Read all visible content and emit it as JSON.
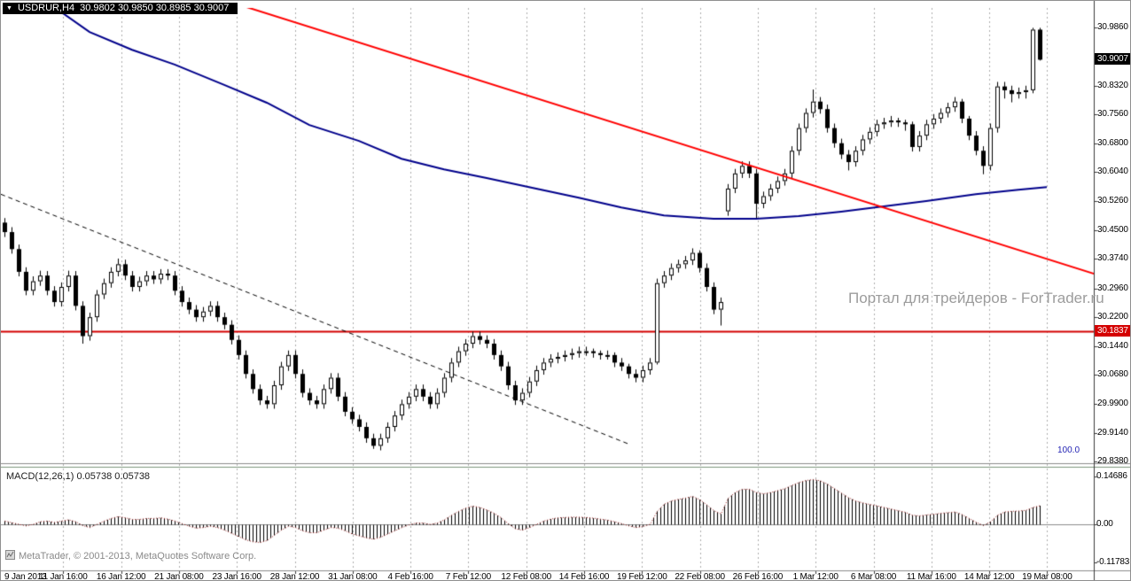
{
  "window": {
    "marker": "▼",
    "symbol_period": "USDRUR,H4",
    "ohlc_readout": "30.9802 30.9850 30.8985 30.9007"
  },
  "watermark": "Портал для трейдеров - ForTrader.ru",
  "copyright": "MetaTrader, © 2001-2013, MetaQuotes Software Corp.",
  "fib_label": "100.0",
  "macd_label": "MACD(12,26,1) 0.05738 0.05738",
  "price_tags": {
    "current": {
      "text": "30.9007",
      "bg": "#000000",
      "fg": "#ffffff"
    },
    "level": {
      "text": "30.1837",
      "bg": "#d40000",
      "fg": "#ffffff"
    }
  },
  "chart_data": [
    {
      "type": "candlestick",
      "title": "USDRUR H4",
      "ylim": [
        29.834,
        31.0375
      ],
      "grid": "vertical-dashed",
      "bull_fill": "#ffffff",
      "bear_fill": "#000000",
      "outline": "#000000",
      "y_tick_labels": [
        "30.9860",
        "30.8320",
        "30.7560",
        "30.6800",
        "30.6040",
        "30.5260",
        "30.4500",
        "30.3740",
        "30.2960",
        "30.2200",
        "30.1440",
        "30.0680",
        "29.9900",
        "29.9140",
        "29.8380"
      ],
      "x_tick_labels": [
        "9 Jan 2013",
        "11 Jan 16:00",
        "16 Jan 12:00",
        "21 Jan 08:00",
        "23 Jan 16:00",
        "28 Jan 12:00",
        "31 Jan 08:00",
        "4 Feb 16:00",
        "7 Feb 12:00",
        "12 Feb 08:00",
        "14 Feb 16:00",
        "19 Feb 12:00",
        "22 Feb 08:00",
        "26 Feb 16:00",
        "1 Mar 12:00",
        "6 Mar 08:00",
        "11 Mar 16:00",
        "14 Mar 12:00",
        "19 Mar 08:00"
      ],
      "candles": [
        [
          30.47,
          30.482,
          30.432,
          30.445
        ],
        [
          30.445,
          30.458,
          30.388,
          30.4
        ],
        [
          30.4,
          30.412,
          30.328,
          30.34
        ],
        [
          30.34,
          30.352,
          30.278,
          30.29
        ],
        [
          30.29,
          30.328,
          30.278,
          30.315
        ],
        [
          30.315,
          30.343,
          30.303,
          30.33
        ],
        [
          30.33,
          30.342,
          30.278,
          30.29
        ],
        [
          30.29,
          30.302,
          30.248,
          30.26
        ],
        [
          30.26,
          30.312,
          30.248,
          30.3
        ],
        [
          30.3,
          30.343,
          30.288,
          30.33
        ],
        [
          30.33,
          30.342,
          30.238,
          30.25
        ],
        [
          30.25,
          30.262,
          30.15,
          30.17
        ],
        [
          30.17,
          30.232,
          30.158,
          30.22
        ],
        [
          30.22,
          30.292,
          30.208,
          30.28
        ],
        [
          30.28,
          30.322,
          30.268,
          30.31
        ],
        [
          30.31,
          30.352,
          30.298,
          30.34
        ],
        [
          30.34,
          30.375,
          30.328,
          30.36
        ],
        [
          30.36,
          30.372,
          30.318,
          30.33
        ],
        [
          30.33,
          30.342,
          30.288,
          30.3
        ],
        [
          30.3,
          30.327,
          30.288,
          30.315
        ],
        [
          30.315,
          30.342,
          30.303,
          30.33
        ],
        [
          30.33,
          30.342,
          30.308,
          30.32
        ],
        [
          30.32,
          30.347,
          30.308,
          30.335
        ],
        [
          30.335,
          30.347,
          30.318,
          30.33
        ],
        [
          30.33,
          30.342,
          30.278,
          30.29
        ],
        [
          30.29,
          30.302,
          30.248,
          30.26
        ],
        [
          30.26,
          30.272,
          30.228,
          30.24
        ],
        [
          30.24,
          30.252,
          30.208,
          30.22
        ],
        [
          30.22,
          30.247,
          30.208,
          30.235
        ],
        [
          30.235,
          30.262,
          30.223,
          30.25
        ],
        [
          30.25,
          30.262,
          30.208,
          30.22
        ],
        [
          30.22,
          30.232,
          30.188,
          30.2
        ],
        [
          30.2,
          30.212,
          30.148,
          30.16
        ],
        [
          30.16,
          30.172,
          30.108,
          30.12
        ],
        [
          30.12,
          30.132,
          30.058,
          30.07
        ],
        [
          30.07,
          30.082,
          30.018,
          30.03
        ],
        [
          30.03,
          30.042,
          29.988,
          30.0
        ],
        [
          30.0,
          30.012,
          29.978,
          29.99
        ],
        [
          29.99,
          30.052,
          29.978,
          30.04
        ],
        [
          30.04,
          30.102,
          30.028,
          30.09
        ],
        [
          30.09,
          30.132,
          30.078,
          30.12
        ],
        [
          30.12,
          30.132,
          30.058,
          30.07
        ],
        [
          30.07,
          30.082,
          30.008,
          30.02
        ],
        [
          30.02,
          30.032,
          29.988,
          30.0
        ],
        [
          30.0,
          30.012,
          29.978,
          29.99
        ],
        [
          29.99,
          30.042,
          29.978,
          30.03
        ],
        [
          30.03,
          30.072,
          30.018,
          30.06
        ],
        [
          30.06,
          30.072,
          29.998,
          30.01
        ],
        [
          30.01,
          30.022,
          29.958,
          29.97
        ],
        [
          29.97,
          29.982,
          29.938,
          29.95
        ],
        [
          29.95,
          29.962,
          29.918,
          29.93
        ],
        [
          29.93,
          29.942,
          29.888,
          29.9
        ],
        [
          29.9,
          29.912,
          29.872,
          29.88
        ],
        [
          29.88,
          29.912,
          29.868,
          29.9
        ],
        [
          29.9,
          29.942,
          29.888,
          29.93
        ],
        [
          29.93,
          29.972,
          29.918,
          29.96
        ],
        [
          29.96,
          30.002,
          29.948,
          29.99
        ],
        [
          29.99,
          30.022,
          29.978,
          30.01
        ],
        [
          30.01,
          30.042,
          29.998,
          30.03
        ],
        [
          30.03,
          30.042,
          29.998,
          30.01
        ],
        [
          30.01,
          30.022,
          29.978,
          29.99
        ],
        [
          29.99,
          30.032,
          29.978,
          30.02
        ],
        [
          30.02,
          30.072,
          30.008,
          30.06
        ],
        [
          30.06,
          30.112,
          30.048,
          30.1
        ],
        [
          30.1,
          30.142,
          30.088,
          30.13
        ],
        [
          30.13,
          30.162,
          30.118,
          30.15
        ],
        [
          30.15,
          30.182,
          30.138,
          30.17
        ],
        [
          30.17,
          30.182,
          30.148,
          30.16
        ],
        [
          30.16,
          30.172,
          30.138,
          30.15
        ],
        [
          30.15,
          30.162,
          30.108,
          30.12
        ],
        [
          30.12,
          30.132,
          30.078,
          30.09
        ],
        [
          30.09,
          30.102,
          30.028,
          30.04
        ],
        [
          30.04,
          30.052,
          29.988,
          30.0
        ],
        [
          30.0,
          30.032,
          29.988,
          30.02
        ],
        [
          30.02,
          30.062,
          30.008,
          30.05
        ],
        [
          30.05,
          30.092,
          30.038,
          30.08
        ],
        [
          30.08,
          30.112,
          30.068,
          30.1
        ],
        [
          30.1,
          30.122,
          30.088,
          30.11
        ],
        [
          30.11,
          30.127,
          30.098,
          30.115
        ],
        [
          30.115,
          30.132,
          30.103,
          30.12
        ],
        [
          30.12,
          30.137,
          30.108,
          30.125
        ],
        [
          30.125,
          30.142,
          30.113,
          30.13
        ],
        [
          30.13,
          30.142,
          30.118,
          30.13
        ],
        [
          30.13,
          30.137,
          30.113,
          30.125
        ],
        [
          30.125,
          30.132,
          30.108,
          30.12
        ],
        [
          30.12,
          30.132,
          30.108,
          30.12
        ],
        [
          30.12,
          30.127,
          30.088,
          30.1
        ],
        [
          30.1,
          30.112,
          30.078,
          30.09
        ],
        [
          30.09,
          30.097,
          30.058,
          30.07
        ],
        [
          30.07,
          30.082,
          30.048,
          30.06
        ],
        [
          30.06,
          30.092,
          30.048,
          30.08
        ],
        [
          30.08,
          30.112,
          30.068,
          30.1
        ],
        [
          30.1,
          30.322,
          30.095,
          30.31
        ],
        [
          30.31,
          30.342,
          30.298,
          30.33
        ],
        [
          30.33,
          30.362,
          30.318,
          30.35
        ],
        [
          30.35,
          30.372,
          30.338,
          30.36
        ],
        [
          30.36,
          30.382,
          30.348,
          30.37
        ],
        [
          30.37,
          30.402,
          30.358,
          30.39
        ],
        [
          30.39,
          30.397,
          30.338,
          30.35
        ],
        [
          30.35,
          30.362,
          30.288,
          30.3
        ],
        [
          30.3,
          30.312,
          30.228,
          30.24
        ],
        [
          30.24,
          30.272,
          30.198,
          30.26
        ],
        [
          30.5,
          30.572,
          30.488,
          30.56
        ],
        [
          30.56,
          30.612,
          30.548,
          30.6
        ],
        [
          30.6,
          30.632,
          30.588,
          30.62
        ],
        [
          30.62,
          30.632,
          30.588,
          30.6
        ],
        [
          30.6,
          30.612,
          30.478,
          30.52
        ],
        [
          30.52,
          30.552,
          30.508,
          30.54
        ],
        [
          30.54,
          30.572,
          30.528,
          30.56
        ],
        [
          30.56,
          30.592,
          30.548,
          30.58
        ],
        [
          30.58,
          30.612,
          30.568,
          30.6
        ],
        [
          30.6,
          30.672,
          30.588,
          30.66
        ],
        [
          30.66,
          30.732,
          30.648,
          30.72
        ],
        [
          30.72,
          30.772,
          30.708,
          30.76
        ],
        [
          30.76,
          30.822,
          30.748,
          30.79
        ],
        [
          30.79,
          30.802,
          30.758,
          30.77
        ],
        [
          30.77,
          30.782,
          30.708,
          30.72
        ],
        [
          30.72,
          30.732,
          30.668,
          30.68
        ],
        [
          30.68,
          30.692,
          30.638,
          30.65
        ],
        [
          30.65,
          30.662,
          30.608,
          30.63
        ],
        [
          30.63,
          30.672,
          30.618,
          30.66
        ],
        [
          30.66,
          30.702,
          30.648,
          30.69
        ],
        [
          30.69,
          30.722,
          30.678,
          30.71
        ],
        [
          30.71,
          30.742,
          30.698,
          30.73
        ],
        [
          30.73,
          30.747,
          30.718,
          30.735
        ],
        [
          30.735,
          30.752,
          30.723,
          30.74
        ],
        [
          30.74,
          30.747,
          30.723,
          30.735
        ],
        [
          30.735,
          30.742,
          30.713,
          30.73
        ],
        [
          30.73,
          30.737,
          30.658,
          30.67
        ],
        [
          30.67,
          30.712,
          30.658,
          30.7
        ],
        [
          30.7,
          30.742,
          30.688,
          30.73
        ],
        [
          30.73,
          30.757,
          30.718,
          30.745
        ],
        [
          30.745,
          30.772,
          30.733,
          30.76
        ],
        [
          30.76,
          30.787,
          30.748,
          30.775
        ],
        [
          30.775,
          30.802,
          30.763,
          30.79
        ],
        [
          30.79,
          30.797,
          30.733,
          30.745
        ],
        [
          30.745,
          30.752,
          30.688,
          30.7
        ],
        [
          30.7,
          30.712,
          30.648,
          30.66
        ],
        [
          30.66,
          30.672,
          30.598,
          30.62
        ],
        [
          30.62,
          30.732,
          30.608,
          30.72
        ],
        [
          30.72,
          30.842,
          30.708,
          30.83
        ],
        [
          30.83,
          30.842,
          30.798,
          30.82
        ],
        [
          30.82,
          30.832,
          30.788,
          30.81
        ],
        [
          30.81,
          30.827,
          30.798,
          30.815
        ],
        [
          30.815,
          30.832,
          30.798,
          30.82
        ],
        [
          30.82,
          30.985,
          30.812,
          30.9802
        ],
        [
          30.9802,
          30.985,
          30.8985,
          30.9007
        ]
      ],
      "overlays": {
        "ma_blue": {
          "color": "#00008b",
          "width": 2,
          "points": [
            [
              7,
              31.04
            ],
            [
              12,
              30.974
            ],
            [
              18,
              30.927
            ],
            [
              24,
              30.888
            ],
            [
              31,
              30.834
            ],
            [
              37,
              30.787
            ],
            [
              43,
              30.728
            ],
            [
              50,
              30.686
            ],
            [
              56,
              30.639
            ],
            [
              62,
              30.611
            ],
            [
              68,
              30.588
            ],
            [
              75,
              30.56
            ],
            [
              81,
              30.536
            ],
            [
              87,
              30.51
            ],
            [
              93,
              30.489
            ],
            [
              100,
              30.48
            ],
            [
              106,
              30.48
            ],
            [
              112,
              30.487
            ],
            [
              118,
              30.499
            ],
            [
              124,
              30.513
            ],
            [
              130,
              30.527
            ],
            [
              137,
              30.545
            ],
            [
              143,
              30.557
            ],
            [
              147,
              30.564
            ]
          ]
        },
        "trendline_red": {
          "color": "#ff0000",
          "width": 2,
          "from": [
            31.4,
            31.056
          ],
          "to": [
            154.5,
            30.33
          ]
        },
        "trendline_dashed": {
          "color": "#000000",
          "width": 1,
          "dash": [
            5,
            4
          ],
          "from": [
            -0.5,
            30.545
          ],
          "to": [
            88,
            29.885
          ]
        },
        "hline_red": {
          "color": "#d40000",
          "width": 2,
          "price": 30.1837
        },
        "current_price": 30.9007
      }
    },
    {
      "type": "bar",
      "title": "MACD(12,26,1)",
      "ylim": [
        -0.1365,
        0.1692
      ],
      "y_tick_labels": [
        "0.14686",
        "0.00",
        "-0.11783"
      ],
      "histogram_color": "#000000",
      "signal_color": "#9b1c1c",
      "current_value": 0.05738,
      "signal_value": 0.05738,
      "values": [
        0.01,
        0.005,
        0,
        -0.005,
        0,
        0.008,
        0.01,
        0.006,
        0.01,
        0.014,
        0.008,
        -0.004,
        -0.01,
        0,
        0.01,
        0.018,
        0.024,
        0.02,
        0.015,
        0.015,
        0.018,
        0.018,
        0.02,
        0.016,
        0.01,
        0.002,
        -0.006,
        -0.012,
        -0.01,
        -0.006,
        -0.01,
        -0.018,
        -0.028,
        -0.038,
        -0.048,
        -0.054,
        -0.056,
        -0.05,
        -0.034,
        -0.018,
        -0.006,
        -0.01,
        -0.02,
        -0.026,
        -0.026,
        -0.018,
        -0.01,
        -0.012,
        -0.02,
        -0.03,
        -0.036,
        -0.042,
        -0.046,
        -0.04,
        -0.03,
        -0.02,
        -0.01,
        -0.002,
        0.004,
        0.004,
        0,
        0.004,
        0.014,
        0.028,
        0.04,
        0.05,
        0.056,
        0.052,
        0.044,
        0.034,
        0.02,
        0.002,
        -0.014,
        -0.018,
        -0.01,
        0,
        0.01,
        0.016,
        0.02,
        0.021,
        0.022,
        0.022,
        0.021,
        0.019,
        0.016,
        0.013,
        0.008,
        0.002,
        -0.005,
        -0.01,
        -0.007,
        0,
        0.04,
        0.062,
        0.072,
        0.077,
        0.081,
        0.086,
        0.076,
        0.06,
        0.042,
        0.032,
        0.08,
        0.098,
        0.108,
        0.108,
        0.098,
        0.094,
        0.098,
        0.104,
        0.11,
        0.12,
        0.129,
        0.135,
        0.138,
        0.134,
        0.124,
        0.11,
        0.096,
        0.082,
        0.072,
        0.066,
        0.061,
        0.057,
        0.052,
        0.047,
        0.042,
        0.037,
        0.028,
        0.026,
        0.029,
        0.031,
        0.034,
        0.036,
        0.038,
        0.03,
        0.018,
        0.006,
        -0.004,
        0.008,
        0.028,
        0.038,
        0.04,
        0.041,
        0.043,
        0.052,
        0.05738
      ]
    }
  ]
}
